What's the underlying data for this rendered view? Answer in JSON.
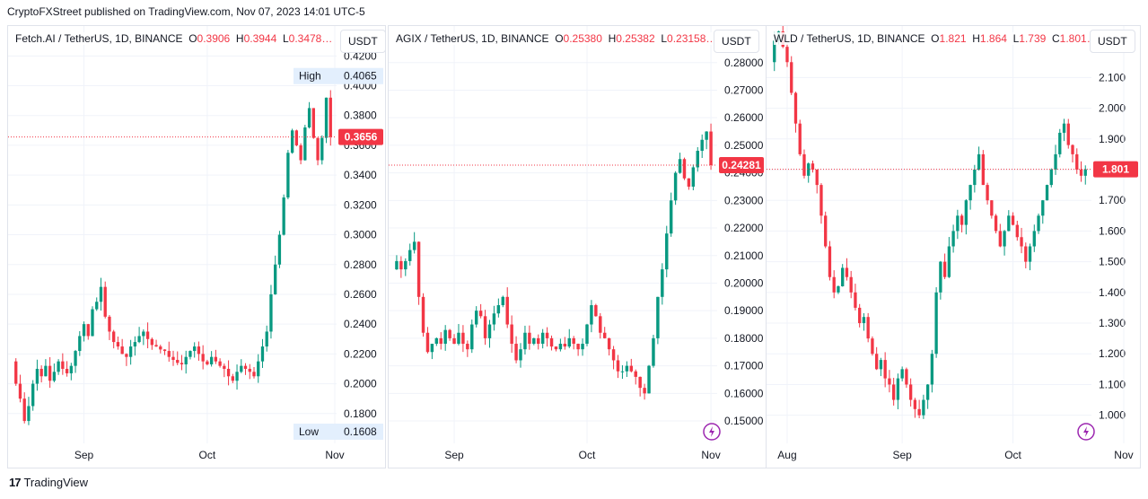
{
  "header": {
    "published": "CryptoFXStreet published on TradingView.com, Nov 07, 2023 14:01 UTC-5"
  },
  "footer": {
    "brand": "TradingView"
  },
  "colors": {
    "up": "#089981",
    "down": "#f23645",
    "grid": "#f0f3fa",
    "price_line": "#f23645"
  },
  "chart_data": [
    {
      "type": "candlestick",
      "title": "Fetch.AI / TetherUS, 1D, BINANCE",
      "ohlc_labels": {
        "o": "0.3906",
        "h": "0.3944",
        "l": "0.3478…"
      },
      "unit": "USDT",
      "y_ticks": [
        "0.4200",
        "0.4000",
        "0.3800",
        "0.3600",
        "0.3400",
        "0.3200",
        "0.3000",
        "0.2800",
        "0.2600",
        "0.2400",
        "0.2200",
        "0.2000",
        "0.1800"
      ],
      "x_ticks": [
        "Sep",
        "Oct",
        "Nov"
      ],
      "ylim": [
        0.163,
        0.422
      ],
      "last_price": "0.3656",
      "high_label": {
        "text": "High",
        "value": "0.4065"
      },
      "low_label": {
        "text": "Low",
        "value": "0.1608"
      },
      "path": [
        0.215,
        0.2,
        0.19,
        0.175,
        0.185,
        0.2,
        0.21,
        0.205,
        0.212,
        0.202,
        0.208,
        0.215,
        0.21,
        0.207,
        0.212,
        0.222,
        0.232,
        0.24,
        0.232,
        0.25,
        0.255,
        0.265,
        0.245,
        0.235,
        0.228,
        0.225,
        0.22,
        0.218,
        0.225,
        0.228,
        0.232,
        0.235,
        0.23,
        0.226,
        0.225,
        0.223,
        0.222,
        0.218,
        0.216,
        0.214,
        0.213,
        0.218,
        0.222,
        0.225,
        0.22,
        0.215,
        0.213,
        0.218,
        0.215,
        0.212,
        0.21,
        0.205,
        0.202,
        0.208,
        0.212,
        0.21,
        0.208,
        0.205,
        0.215,
        0.225,
        0.235,
        0.26,
        0.28,
        0.3,
        0.325,
        0.355,
        0.37,
        0.36,
        0.35,
        0.372,
        0.385,
        0.365,
        0.35,
        0.365,
        0.392,
        0.3656
      ],
      "x_tick_index": [
        17,
        46,
        76
      ]
    },
    {
      "type": "candlestick",
      "title": "AGIX / TetherUS, 1D, BINANCE",
      "ohlc_labels": {
        "o": "0.25380",
        "h": "0.25382",
        "l": "0.23158…"
      },
      "unit": "USDT",
      "y_ticks": [
        "0.28000",
        "0.27000",
        "0.26000",
        "0.25000",
        "0.24000",
        "0.23000",
        "0.22000",
        "0.21000",
        "0.20000",
        "0.19000",
        "0.18000",
        "0.17000",
        "0.16000",
        "0.15000"
      ],
      "x_ticks": [
        "Sep",
        "Oct",
        "Nov"
      ],
      "ylim": [
        0.1435,
        0.2835
      ],
      "last_price": "0.24281",
      "path": [
        0.205,
        0.208,
        0.205,
        0.208,
        0.212,
        0.215,
        0.195,
        0.182,
        0.175,
        0.178,
        0.18,
        0.178,
        0.183,
        0.18,
        0.178,
        0.182,
        0.178,
        0.176,
        0.185,
        0.19,
        0.188,
        0.18,
        0.185,
        0.189,
        0.192,
        0.195,
        0.185,
        0.178,
        0.172,
        0.176,
        0.182,
        0.178,
        0.18,
        0.178,
        0.182,
        0.18,
        0.177,
        0.176,
        0.178,
        0.177,
        0.18,
        0.178,
        0.176,
        0.178,
        0.185,
        0.192,
        0.188,
        0.182,
        0.18,
        0.176,
        0.172,
        0.168,
        0.168,
        0.17,
        0.168,
        0.166,
        0.162,
        0.16,
        0.17,
        0.18,
        0.195,
        0.205,
        0.218,
        0.23,
        0.24,
        0.245,
        0.238,
        0.235,
        0.242,
        0.248,
        0.252,
        0.255,
        0.24281
      ],
      "x_tick_index": [
        14,
        44,
        72
      ]
    },
    {
      "type": "candlestick",
      "title": "WLD / TetherUS, 1D, BINANCE",
      "ohlc_labels": {
        "o": "1.821",
        "h": "1.864",
        "l": "1.739",
        "c": "1.801…"
      },
      "unit": "USDT",
      "y_ticks": [
        "2.100",
        "2.000",
        "1.900",
        "1.800",
        "1.700",
        "1.600",
        "1.500",
        "1.400",
        "1.300",
        "1.200",
        "1.100",
        "1.000"
      ],
      "x_ticks": [
        "Aug",
        "Sep",
        "Oct",
        "Nov"
      ],
      "ylim": [
        0.923,
        2.18
      ],
      "last_price": "1.801",
      "path": [
        2.15,
        2.22,
        2.25,
        2.2,
        2.15,
        2.05,
        1.95,
        1.85,
        1.78,
        1.82,
        1.8,
        1.75,
        1.65,
        1.55,
        1.45,
        1.4,
        1.42,
        1.48,
        1.45,
        1.4,
        1.35,
        1.3,
        1.32,
        1.25,
        1.2,
        1.15,
        1.18,
        1.12,
        1.1,
        1.05,
        1.12,
        1.15,
        1.1,
        1.05,
        1.02,
        1.0,
        1.05,
        1.1,
        1.2,
        1.4,
        1.5,
        1.45,
        1.55,
        1.6,
        1.65,
        1.62,
        1.7,
        1.75,
        1.8,
        1.85,
        1.75,
        1.7,
        1.65,
        1.6,
        1.55,
        1.6,
        1.65,
        1.62,
        1.58,
        1.55,
        1.5,
        1.55,
        1.6,
        1.65,
        1.7,
        1.75,
        1.8,
        1.85,
        1.92,
        1.95,
        1.88,
        1.85,
        1.8,
        1.78,
        1.801
      ],
      "x_tick_index": [
        4,
        31,
        57,
        83
      ]
    }
  ],
  "panels_meta": [
    {
      "width": 420,
      "left": 8
    },
    {
      "width": 420,
      "left": 432
    },
    {
      "width": 416,
      "left": 853
    }
  ]
}
